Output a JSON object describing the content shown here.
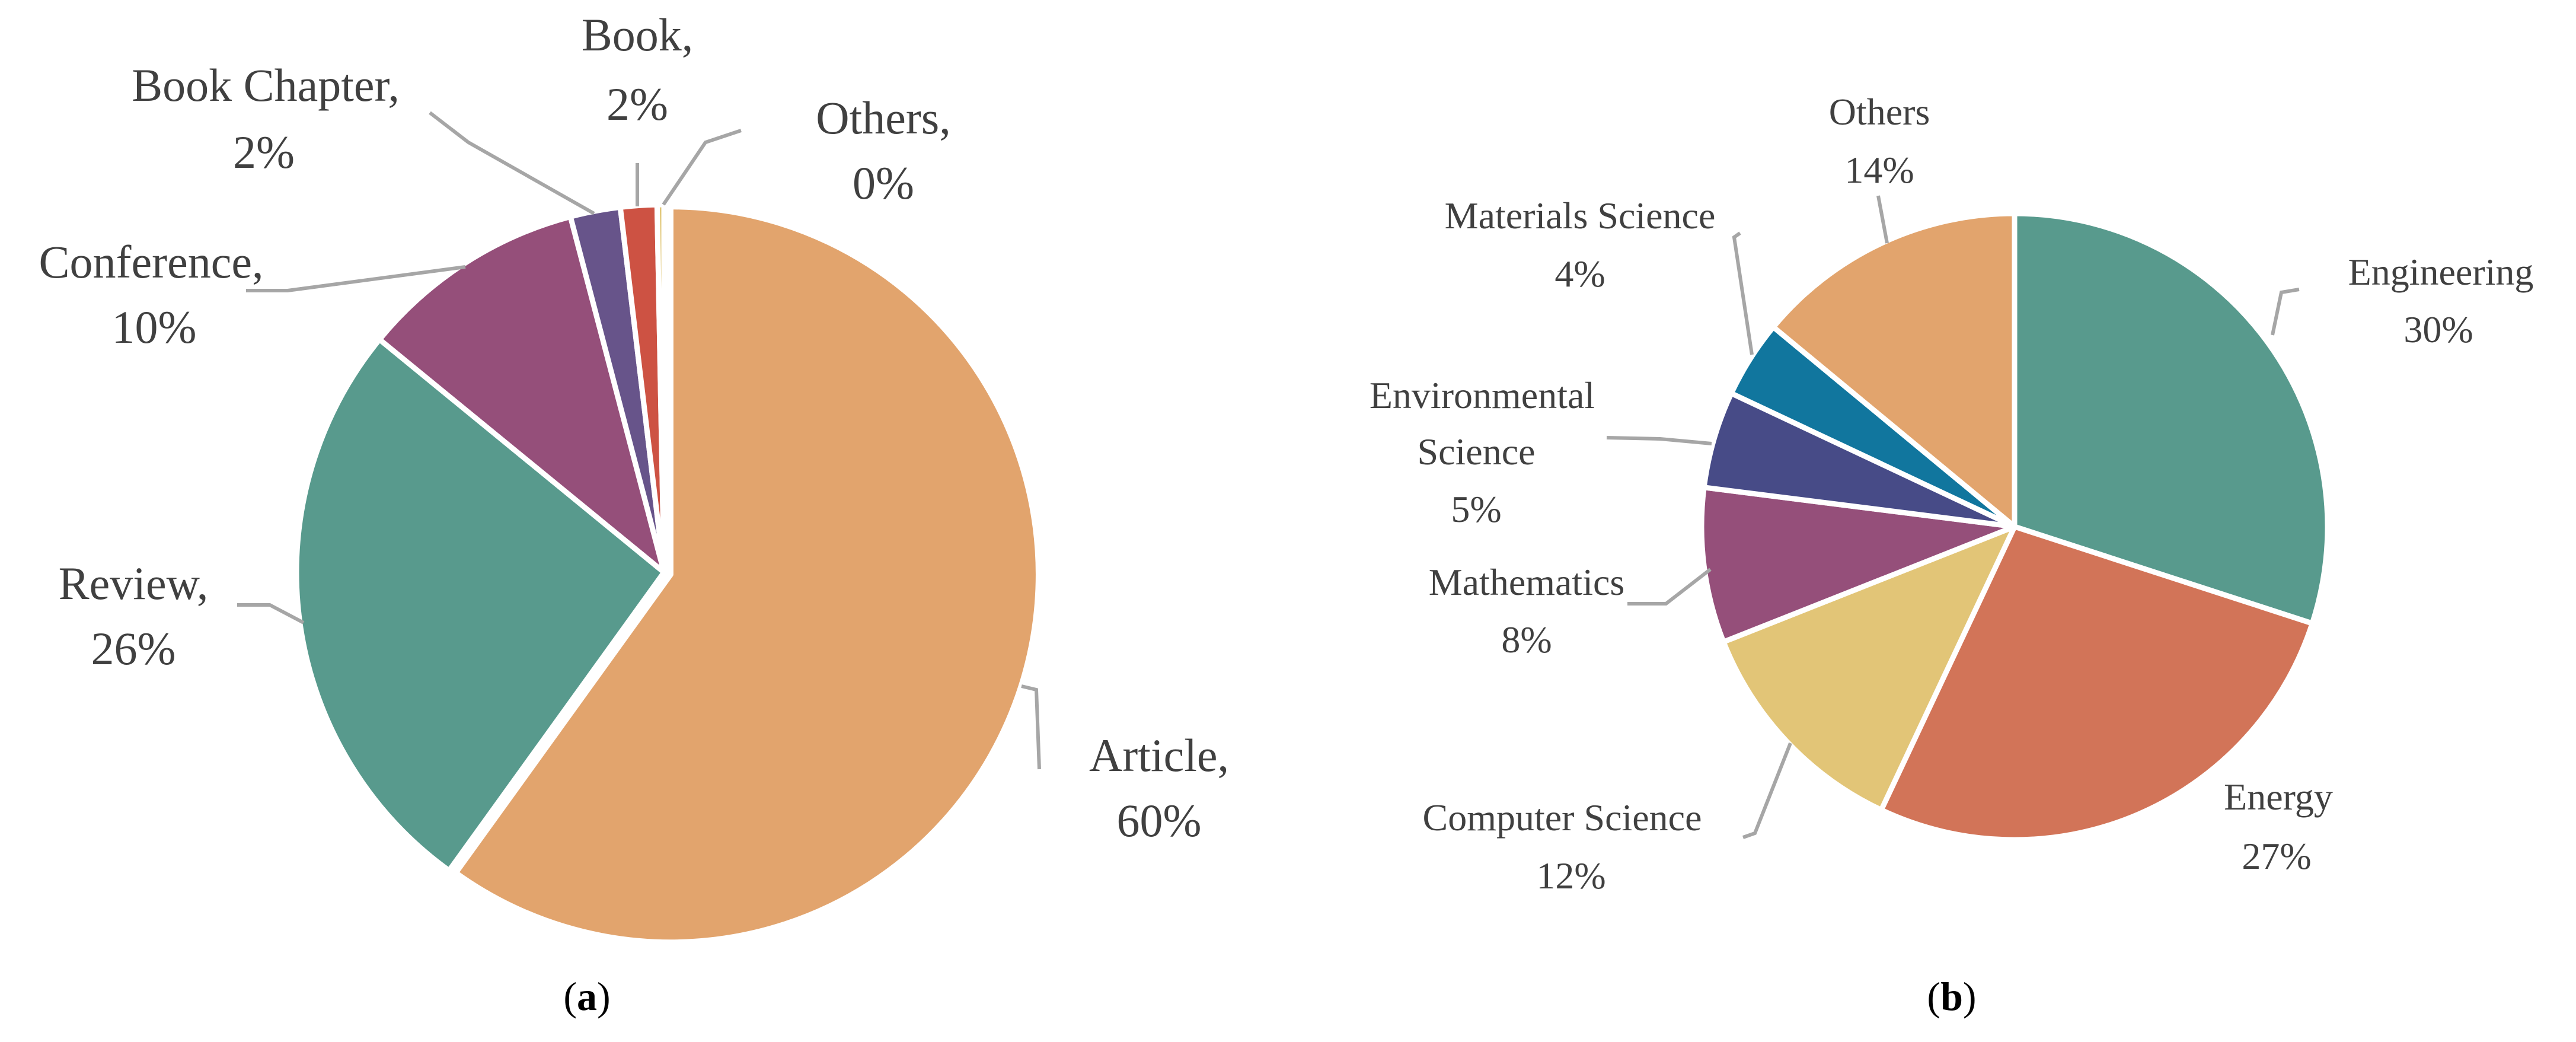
{
  "chart_data": [
    {
      "type": "pie",
      "panel_label": "a",
      "slices": [
        {
          "name": "Article",
          "percent_label": "60%",
          "value": 60,
          "color": "#E2A46D"
        },
        {
          "name": "Review",
          "percent_label": "26%",
          "value": 26,
          "color": "#589A8D"
        },
        {
          "name": "Conference",
          "percent_label": "10%",
          "value": 10,
          "color": "#954F7A"
        },
        {
          "name": "Book Chapter",
          "percent_label": "2%",
          "value": 2.2,
          "color": "#67548A"
        },
        {
          "name": "Book",
          "percent_label": "2%",
          "value": 1.6,
          "color": "#CD5243"
        },
        {
          "name": "Others",
          "percent_label": "0%",
          "value": 0.3,
          "color": "#E1C777"
        }
      ]
    },
    {
      "type": "pie",
      "panel_label": "b",
      "slices": [
        {
          "name": "Engineering",
          "percent_label": "30%",
          "value": 30,
          "color": "#589A8D"
        },
        {
          "name": "Energy",
          "percent_label": "27%",
          "value": 27,
          "color": "#D27458"
        },
        {
          "name": "Computer Science",
          "percent_label": "12%",
          "value": 12,
          "color": "#E2C577"
        },
        {
          "name": "Mathematics",
          "percent_label": "8%",
          "value": 8,
          "color": "#954F7A"
        },
        {
          "name": "Environmental Science",
          "percent_label": "5%",
          "value": 5,
          "color": "#474B87"
        },
        {
          "name": "Materials Science",
          "percent_label": "4%",
          "value": 4,
          "color": "#11769E"
        },
        {
          "name": "Others",
          "percent_label": "14%",
          "value": 14,
          "color": "#E2A46D"
        }
      ]
    }
  ]
}
